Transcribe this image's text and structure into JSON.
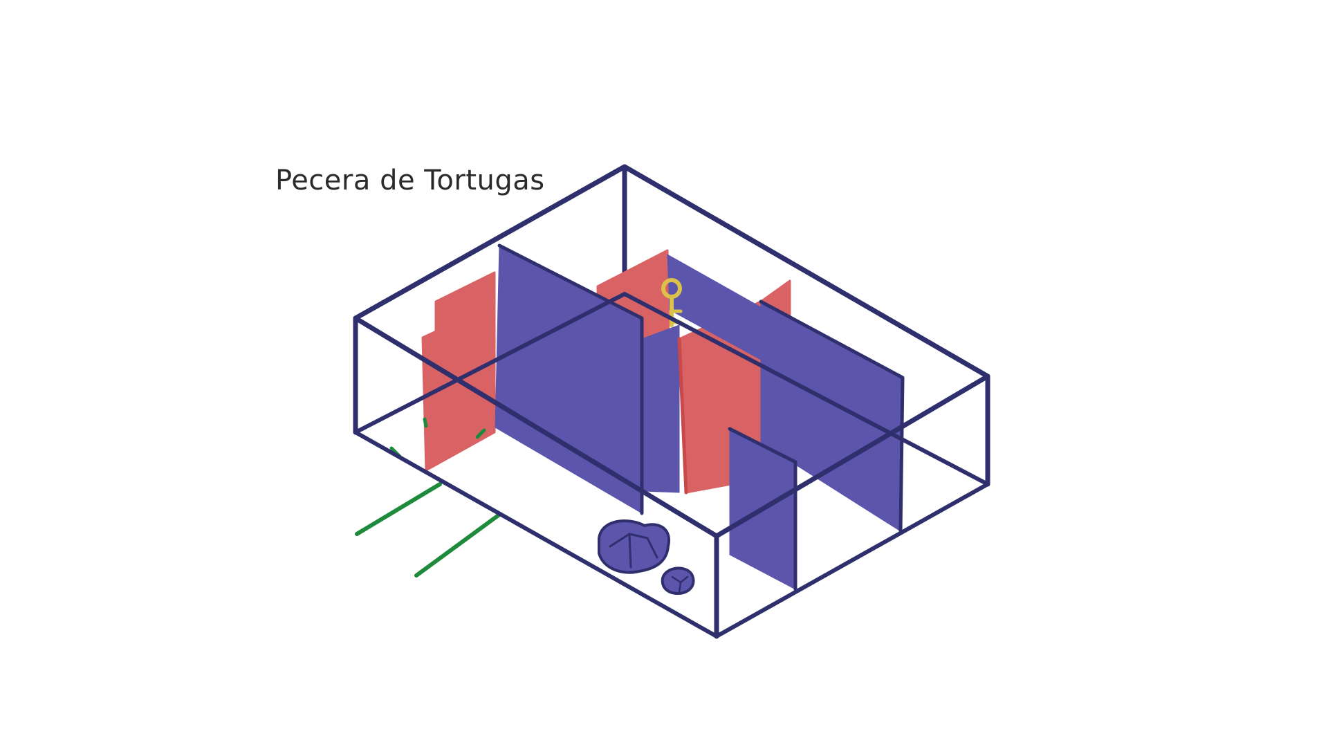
{
  "title": "Pecera de Tortugas",
  "colors": {
    "outline": "#2f2f6e",
    "blue_wall": "#5b55ac",
    "red_wall": "#d96364",
    "green_line": "#1e8a3c",
    "key": "#dcc24a",
    "background": "#ffffff"
  },
  "icons": [
    "key-icon",
    "rock-icon"
  ]
}
